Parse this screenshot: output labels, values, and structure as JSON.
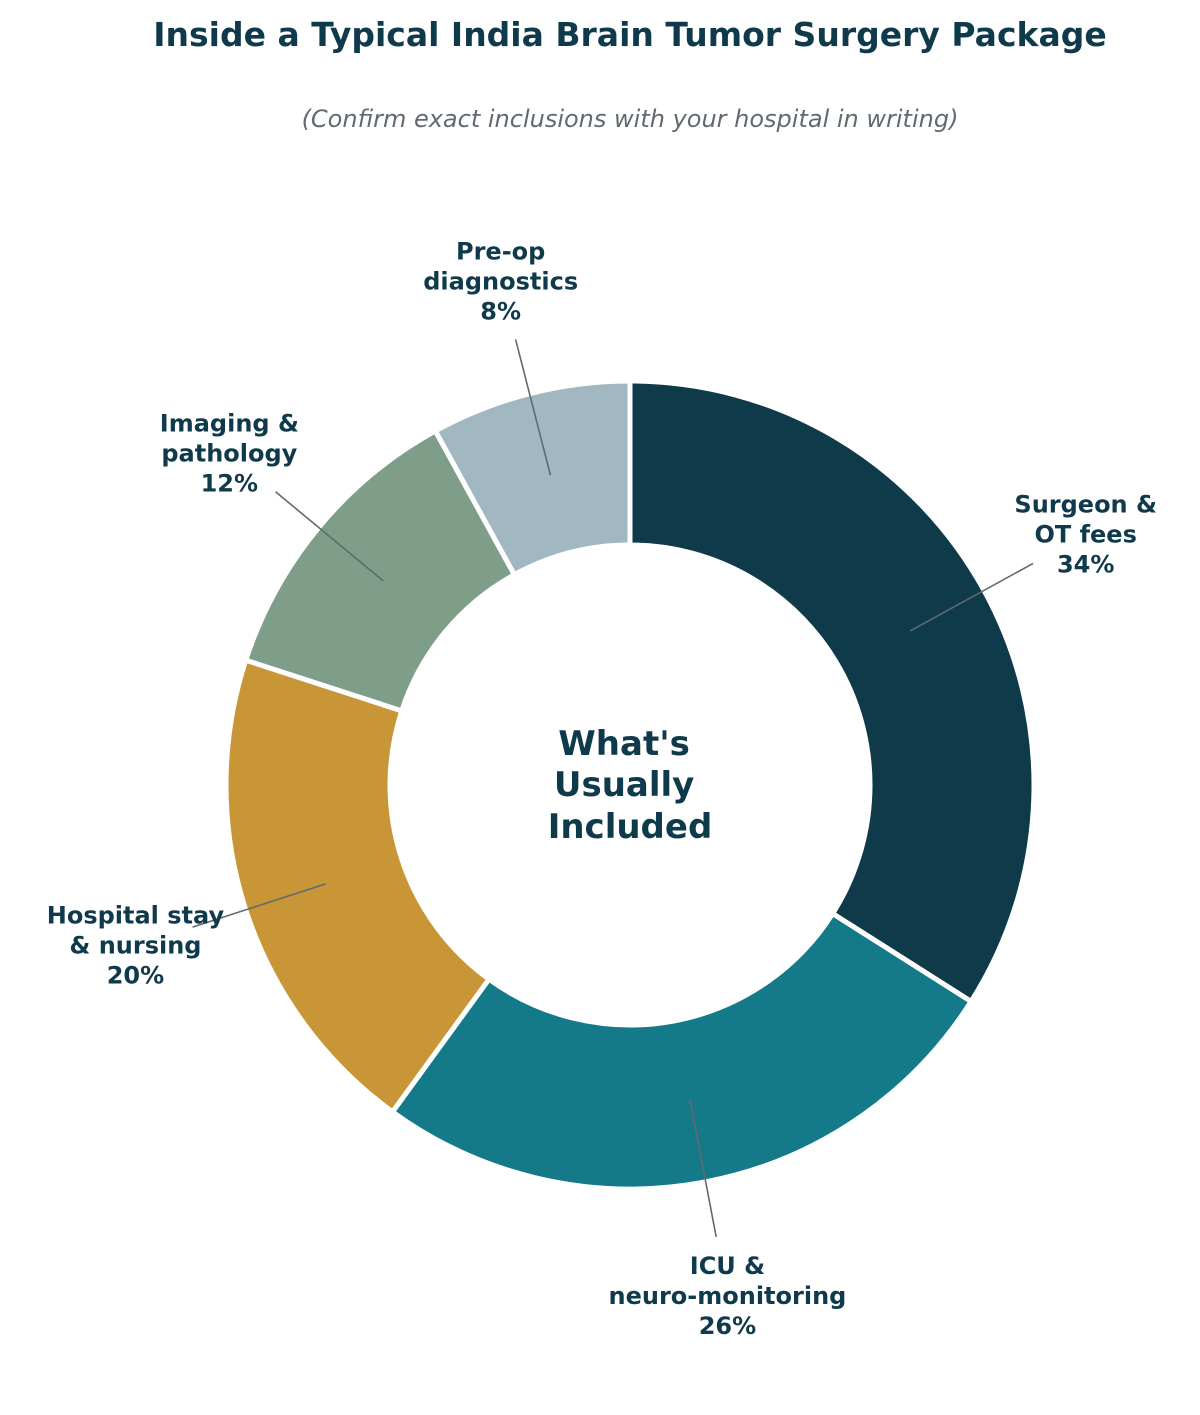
{
  "chart_data": {
    "type": "pie",
    "variant": "donut",
    "title": "Inside a Typical India Brain Tumor Surgery Package",
    "subtitle": "(Confirm exact inclusions with your hospital in writing)",
    "center_label": [
      "What's",
      "Usually",
      "Included"
    ],
    "categories": [
      "Surgeon & OT fees",
      "ICU & neuro-monitoring",
      "Hospital stay & nursing",
      "Imaging & pathology",
      "Pre-op diagnostics"
    ],
    "values": [
      34,
      26,
      20,
      12,
      8
    ],
    "slices": [
      {
        "label_lines": [
          "Surgeon &",
          "OT fees"
        ],
        "value_label": "34%",
        "value": 34,
        "color": "#0e3a4a"
      },
      {
        "label_lines": [
          "ICU &",
          "neuro-monitoring"
        ],
        "value_label": "26%",
        "value": 26,
        "color": "#147a8a"
      },
      {
        "label_lines": [
          "Hospital stay",
          "& nursing"
        ],
        "value_label": "20%",
        "value": 20,
        "color": "#c89637"
      },
      {
        "label_lines": [
          "Imaging &",
          "pathology"
        ],
        "value_label": "12%",
        "value": 12,
        "color": "#7f9e8a"
      },
      {
        "label_lines": [
          "Pre-op",
          "diagnostics"
        ],
        "value_label": "8%",
        "value": 8,
        "color": "#a1b7c1"
      }
    ],
    "direction": "clockwise",
    "start": "top",
    "legend": "none",
    "colors": {
      "title": "#0f3a4b",
      "subtitle": "#5f6b6f",
      "leader": "#5f6b6f",
      "separator": "#ffffff"
    }
  }
}
